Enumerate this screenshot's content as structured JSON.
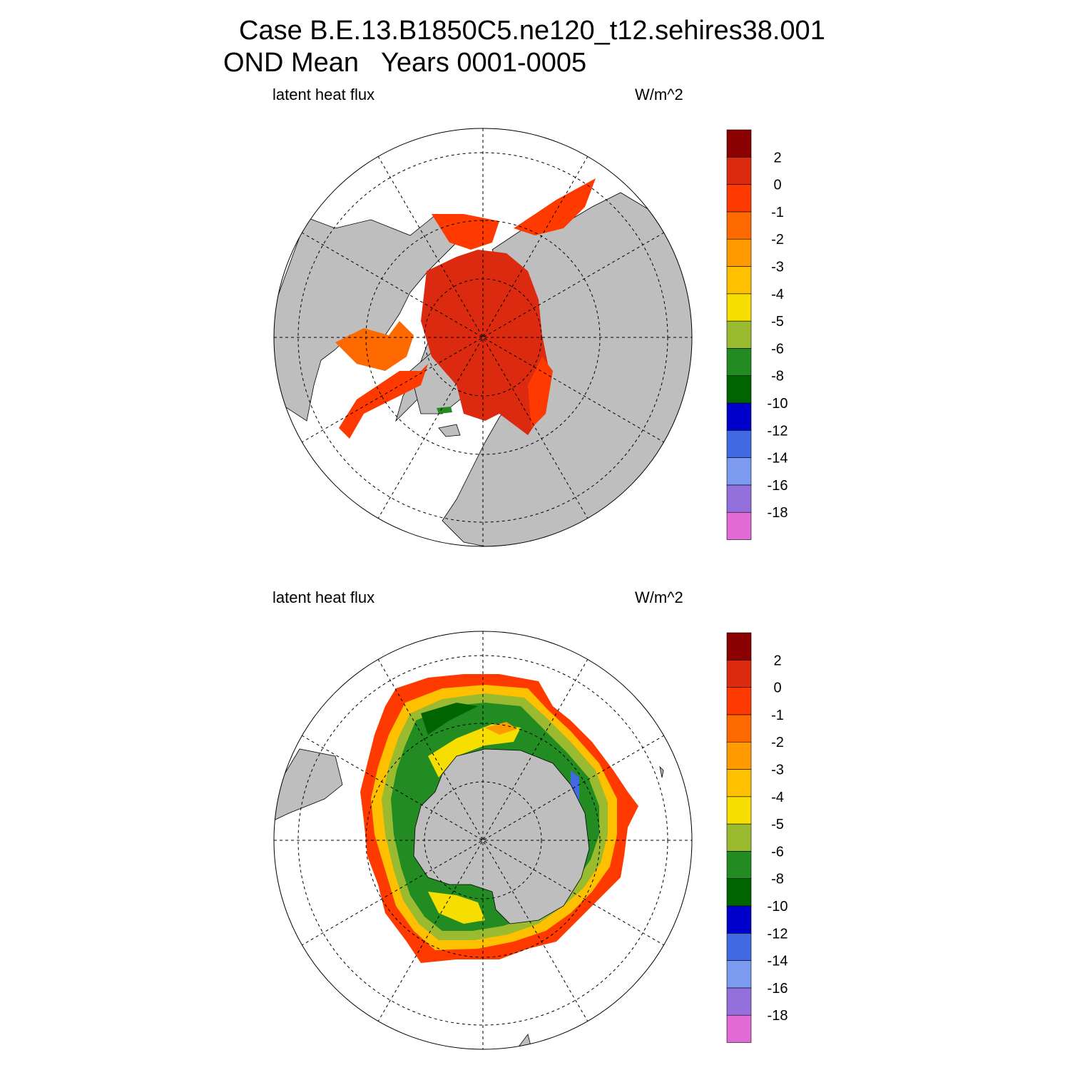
{
  "title": {
    "line1": "Case B.E.13.B1850C5.ne120_t12.sehires38.001",
    "line2": "OND Mean   Years 0001-0005"
  },
  "panels": [
    {
      "name": "north",
      "variable_label": "latent heat flux",
      "units_label": "W/m^2",
      "hemisphere": "north"
    },
    {
      "name": "south",
      "variable_label": "latent heat flux",
      "units_label": "W/m^2",
      "hemisphere": "south"
    }
  ],
  "colorbar": {
    "colors": [
      "#e16ad6",
      "#9370db",
      "#7b9af0",
      "#4169e1",
      "#0000cd",
      "#006400",
      "#228b22",
      "#9abb2f",
      "#f5de00",
      "#ffc000",
      "#ff9a00",
      "#ff6a00",
      "#ff3a00",
      "#dc2a10",
      "#8b0000"
    ],
    "labels": [
      "-18",
      "-16",
      "-14",
      "-12",
      "-10",
      "-8",
      "-6",
      "-5",
      "-4",
      "-3",
      "-2",
      "-1",
      "0",
      "2"
    ]
  },
  "colors": {
    "land": "#bebebe",
    "ice_free": "#ffffff",
    "coast": "#000000"
  }
}
